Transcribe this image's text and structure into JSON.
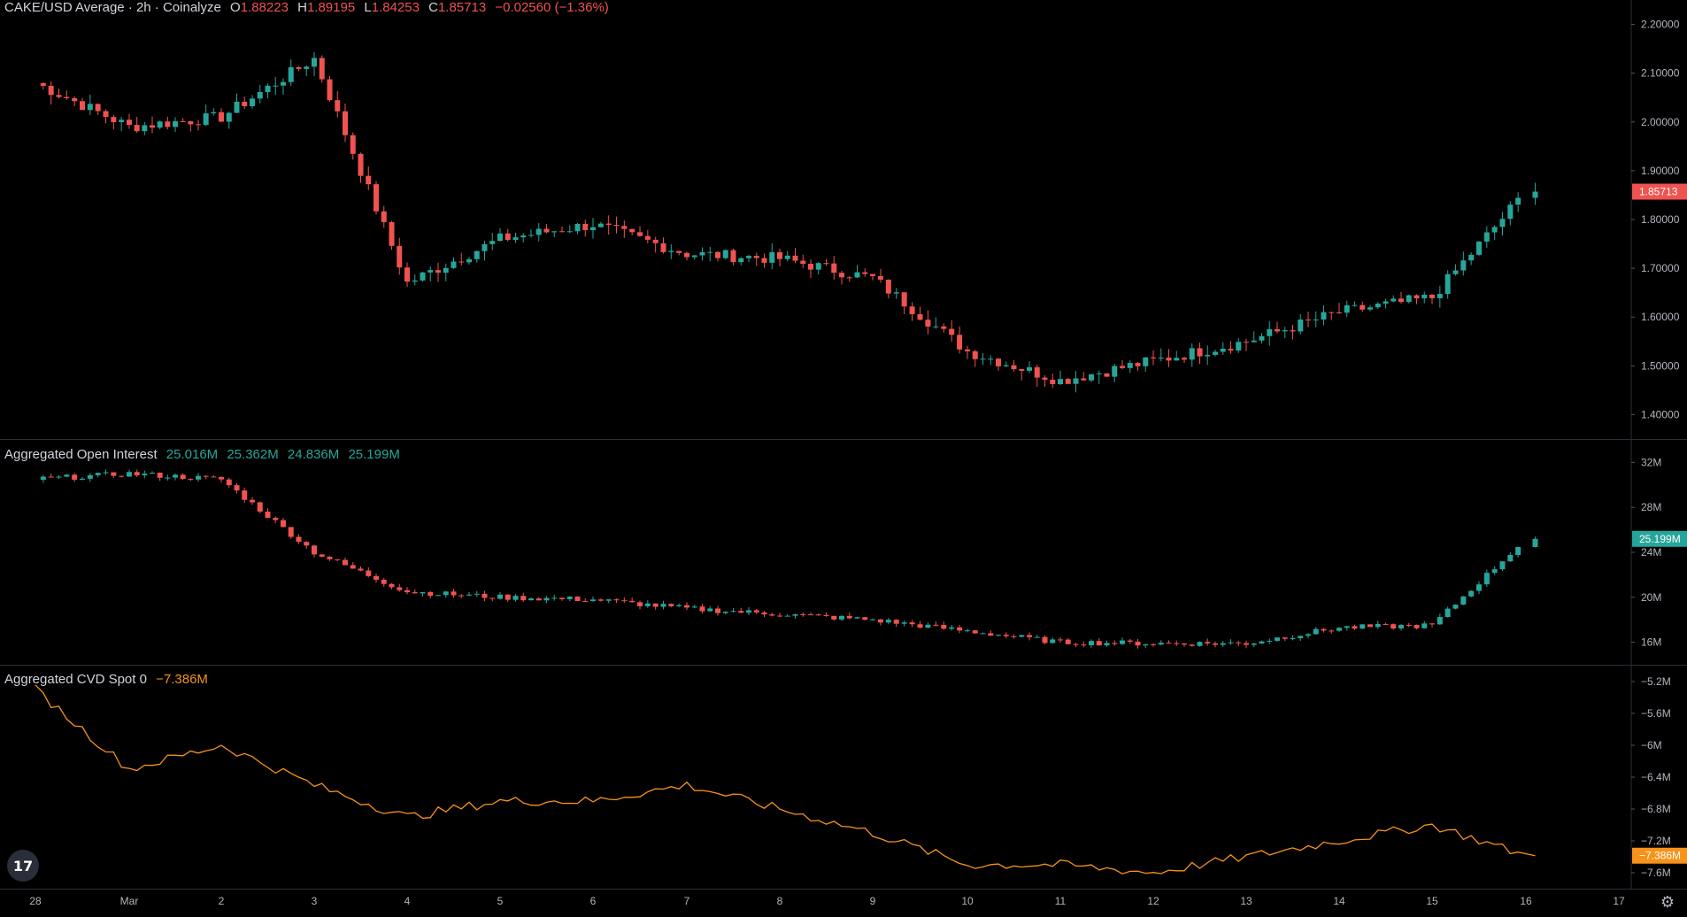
{
  "price_panel": {
    "legend": {
      "symbol": "CAKE/USD Average · 2h · Coinalyze",
      "o_label": "O",
      "o": "1.88223",
      "h_label": "H",
      "h": "1.89195",
      "l_label": "L",
      "l": "1.84253",
      "c_label": "C",
      "c": "1.85713",
      "change": "−0.02560 (−1.36%)"
    },
    "axis_ticks": [
      "2.20000",
      "2.10000",
      "2.00000",
      "1.90000",
      "1.80000",
      "1.70000",
      "1.60000",
      "1.50000",
      "1.40000"
    ],
    "last_label": "1.85713"
  },
  "oi_panel": {
    "legend": {
      "title": "Aggregated Open Interest",
      "v1": "25.016M",
      "v2": "25.362M",
      "v3": "24.836M",
      "v4": "25.199M"
    },
    "axis_ticks": [
      "32M",
      "28M",
      "24M",
      "20M",
      "16M"
    ],
    "last_label": "25.199M"
  },
  "cvd_panel": {
    "legend": {
      "title": "Aggregated CVD Spot 0",
      "value": "−7.386M"
    },
    "axis_ticks": [
      "−5.2M",
      "−5.6M",
      "−6M",
      "−6.4M",
      "−6.8M",
      "−7.2M",
      "−7.6M"
    ],
    "last_label": "−7.386M"
  },
  "time_axis": [
    "28",
    "Mar",
    "2",
    "3",
    "4",
    "5",
    "6",
    "7",
    "8",
    "9",
    "10",
    "11",
    "12",
    "13",
    "14",
    "15",
    "16",
    "17"
  ],
  "colors": {
    "up": "#26a69a",
    "down": "#ef5350",
    "cvd_line": "#f7931a",
    "grid": "#2a2e39",
    "background": "#000000"
  },
  "chart_data": [
    {
      "type": "candlestick",
      "title": "CAKE/USD Average · 2h · Coinalyze",
      "ylim": [
        1.35,
        2.25
      ],
      "key_points": [
        {
          "day": "Feb 28",
          "close": 2.08
        },
        {
          "day": "Mar 1",
          "close": 1.99
        },
        {
          "day": "Mar 2",
          "close": 2.01
        },
        {
          "day": "Mar 3",
          "close": 2.13
        },
        {
          "day": "Mar 4",
          "close": 1.67
        },
        {
          "day": "Mar 5",
          "close": 1.76
        },
        {
          "day": "Mar 6",
          "close": 1.79
        },
        {
          "day": "Mar 7",
          "close": 1.73
        },
        {
          "day": "Mar 8",
          "close": 1.72
        },
        {
          "day": "Mar 9",
          "close": 1.68
        },
        {
          "day": "Mar 10",
          "close": 1.53
        },
        {
          "day": "Mar 11",
          "close": 1.47
        },
        {
          "day": "Mar 12",
          "close": 1.51
        },
        {
          "day": "Mar 13",
          "close": 1.55
        },
        {
          "day": "Mar 14",
          "close": 1.61
        },
        {
          "day": "Mar 15",
          "close": 1.64
        },
        {
          "day": "Mar 16",
          "close": 1.857
        }
      ],
      "last_close": 1.85713
    },
    {
      "type": "candlestick",
      "title": "Aggregated Open Interest",
      "ylim": [
        14,
        34
      ],
      "key_points": [
        {
          "day": "Feb 28",
          "value": 30.5
        },
        {
          "day": "Mar 1",
          "value": 31.0
        },
        {
          "day": "Mar 2",
          "value": 30.5
        },
        {
          "day": "Mar 3",
          "value": 24.0
        },
        {
          "day": "Mar 4",
          "value": 20.5
        },
        {
          "day": "Mar 5",
          "value": 20.0
        },
        {
          "day": "Mar 6",
          "value": 19.8
        },
        {
          "day": "Mar 7",
          "value": 19.0
        },
        {
          "day": "Mar 8",
          "value": 18.5
        },
        {
          "day": "Mar 9",
          "value": 18.0
        },
        {
          "day": "Mar 10",
          "value": 17.0
        },
        {
          "day": "Mar 11",
          "value": 16.0
        },
        {
          "day": "Mar 12",
          "value": 15.9
        },
        {
          "day": "Mar 13",
          "value": 15.9
        },
        {
          "day": "Mar 14",
          "value": 17.3
        },
        {
          "day": "Mar 15",
          "value": 17.5
        },
        {
          "day": "Mar 16",
          "value": 25.199
        }
      ],
      "last_value": 25.199
    },
    {
      "type": "line",
      "title": "Aggregated CVD Spot 0",
      "ylim": [
        -7.8,
        -5.0
      ],
      "key_points": [
        {
          "day": "Feb 28",
          "value": -5.3
        },
        {
          "day": "Mar 1",
          "value": -6.3
        },
        {
          "day": "Mar 2",
          "value": -6.0
        },
        {
          "day": "Mar 3",
          "value": -6.5
        },
        {
          "day": "Mar 4",
          "value": -6.9
        },
        {
          "day": "Mar 5",
          "value": -6.7
        },
        {
          "day": "Mar 6",
          "value": -6.7
        },
        {
          "day": "Mar 7",
          "value": -6.5
        },
        {
          "day": "Mar 8",
          "value": -6.8
        },
        {
          "day": "Mar 9",
          "value": -7.1
        },
        {
          "day": "Mar 10",
          "value": -7.5
        },
        {
          "day": "Mar 11",
          "value": -7.5
        },
        {
          "day": "Mar 12",
          "value": -7.6
        },
        {
          "day": "Mar 13",
          "value": -7.4
        },
        {
          "day": "Mar 14",
          "value": -7.2
        },
        {
          "day": "Mar 15",
          "value": -7.0
        },
        {
          "day": "Mar 16",
          "value": -7.386
        }
      ],
      "last_value": -7.386
    }
  ]
}
